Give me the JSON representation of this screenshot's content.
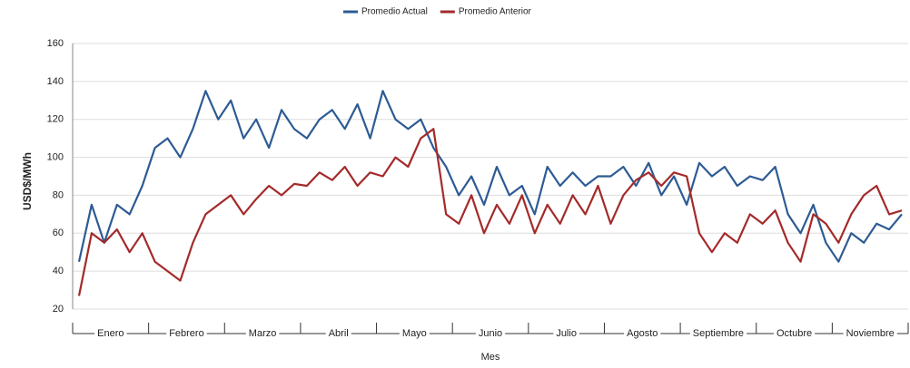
{
  "chart_data": {
    "type": "line",
    "y_label": "USD$/MWh",
    "x_label": "Mes",
    "categories": [
      "Enero",
      null,
      null,
      null,
      null,
      null,
      "Febrero",
      null,
      null,
      null,
      null,
      null,
      "Marzo",
      null,
      null,
      null,
      null,
      null,
      "Abril",
      null,
      null,
      null,
      null,
      null,
      "Mayo",
      null,
      null,
      null,
      null,
      null,
      "Junio",
      null,
      null,
      null,
      null,
      null,
      "Julio",
      null,
      null,
      null,
      null,
      null,
      "Agosto",
      null,
      null,
      null,
      null,
      null,
      "Septiembre",
      null,
      null,
      null,
      null,
      null,
      "Octubre",
      null,
      null,
      null,
      null,
      null,
      "Noviembre",
      null,
      null,
      null,
      null,
      null
    ],
    "series": [
      {
        "name": "Promedio Actual",
        "color": "#2d5b94",
        "values": [
          45,
          75,
          55,
          75,
          70,
          85,
          105,
          110,
          100,
          115,
          135,
          120,
          130,
          110,
          120,
          105,
          125,
          115,
          110,
          120,
          125,
          115,
          128,
          110,
          135,
          120,
          115,
          120,
          105,
          95,
          80,
          90,
          75,
          95,
          80,
          85,
          70,
          95,
          85,
          92,
          85,
          90,
          90,
          95,
          85,
          97,
          80,
          90,
          75,
          97,
          90,
          95,
          85,
          90,
          88,
          95,
          70,
          60,
          75,
          55,
          45,
          60,
          55,
          65,
          62,
          70
        ]
      },
      {
        "name": "Promedio Anterior",
        "color": "#a42a2a",
        "values": [
          27,
          60,
          55,
          62,
          50,
          60,
          45,
          40,
          35,
          55,
          70,
          75,
          80,
          70,
          78,
          85,
          80,
          86,
          85,
          92,
          88,
          95,
          85,
          92,
          90,
          100,
          95,
          110,
          115,
          70,
          65,
          80,
          60,
          75,
          65,
          80,
          60,
          75,
          65,
          80,
          70,
          85,
          65,
          80,
          88,
          92,
          85,
          92,
          90,
          60,
          50,
          60,
          55,
          70,
          65,
          72,
          55,
          45,
          70,
          65,
          55,
          70,
          80,
          85,
          70,
          72
        ]
      }
    ],
    "ylim": [
      20,
      160
    ],
    "yticks": [
      20,
      40,
      60,
      80,
      100,
      120,
      140,
      160
    ],
    "grid": true,
    "legend": "top"
  }
}
